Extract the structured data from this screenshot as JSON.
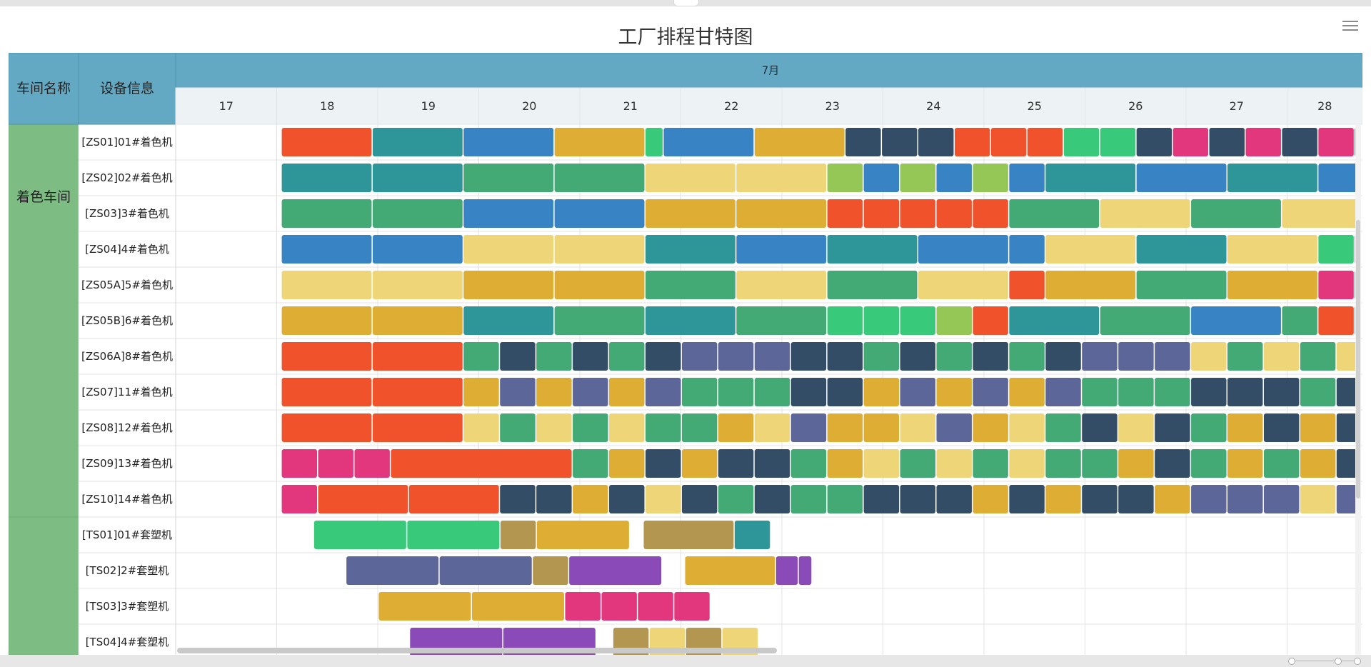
{
  "title": "工厂排程甘特图",
  "header": {
    "col_workshop": "车间名称",
    "col_equipment": "设备信息",
    "month": "7月"
  },
  "days": [
    "17",
    "18",
    "19",
    "20",
    "21",
    "22",
    "23",
    "24",
    "25",
    "26",
    "27",
    "28"
  ],
  "colors": {
    "header_bg": "#64a9c4",
    "header_border": "#4f93ad",
    "day_header_bg": "#edf3f5",
    "workshop_bg": "#7dbd84",
    "equipment_bg": "#ffffff",
    "grid_line": "#e3e3e3",
    "palette": {
      "red": "#f0532b",
      "teal": "#2e9598",
      "blue": "#3883c4",
      "mustard": "#dead33",
      "lightyellow": "#eed577",
      "mint": "#38ca7a",
      "navy": "#344d66",
      "pink": "#e2377d",
      "green": "#43a975",
      "lime": "#94c755",
      "olive": "#b3964f",
      "purple": "#8a4ab8",
      "slate": "#5d6698"
    }
  },
  "workshops": [
    {
      "name": "着色车间",
      "rows": 11
    },
    {
      "name": "",
      "rows": 4
    }
  ],
  "chart_data": {
    "type": "gantt",
    "title": "工厂排程甘特图",
    "x_axis": {
      "label": "7月",
      "ticks": [
        "17",
        "18",
        "19",
        "20",
        "21",
        "22",
        "23",
        "24",
        "25",
        "26",
        "27",
        "28"
      ],
      "range": [
        17,
        28.75
      ]
    },
    "y_axis": {
      "label": "设备信息"
    },
    "machines": [
      {
        "name": "[ZS01]01#着色机",
        "workshop": "着色车间",
        "start": 18.05,
        "seq": "red*2,teal*2,blue*2,mustard*2,mint*0.4,blue*2,mustard*2,navy*0.8,navy*0.8,navy*0.8,red*0.8,red*0.8,red*0.8,mint*0.8,mint*0.8,navy*0.8,pink*0.8,navy*0.8,pink*0.8,navy*0.8,pink*0.8,navy*0.8,pink*0.8,navy*0.8,pink*0.8,navy*0.8,pink*0.8,pink*0.8,pink*0.8,pink*0.8,navy*0.8,pink*0.8,navy*0.8,pink*0.8,navy*0.8,pink*0.8,red*0.8,lightyellow*0.8,lime*0.8,red*0.8,lightyellow*0.8,lime*0.8"
      },
      {
        "name": "[ZS02]02#着色机",
        "workshop": "着色车间",
        "start": 18.05,
        "seq": "teal*2,teal*2,green*2,green*2,lightyellow*2,lightyellow*2,lime*0.8,blue*0.8,lime*0.8,blue*0.8,lime*0.8,blue*0.8,teal*2,blue*2,teal*2,blue*2,green*0.8,green*0.8,green*0.8,navy*0.8,navy*0.8,pink*0.8,pink*0.8,pink*0.8,green*0.8,navy*0.8,green*0.8,navy*0.8,green*0.8,navy*0.8,pink*0.8,pink*0.8,pink*0.8,red*0.8,red*0.8,red*0.8,pink*0.8,pink*0.8,pink*0.8,purple*2,olive*2,purple*2,olive*2"
      },
      {
        "name": "[ZS03]3#着色机",
        "workshop": "着色车间",
        "start": 18.05,
        "seq": "green*2,green*2,blue*2,blue*2,mustard*2,mustard*2,red*0.8,red*0.8,red*0.8,red*0.8,red*0.8,green*2,lightyellow*2,green*2,lightyellow*2,navy*0.8,navy*0.8,navy*0.8,red*0.8,red*0.8,green*0.8,red*0.8,green*0.8,red*0.8,green*0.8,red*0.8,green*0.8,red*0.8,green*0.8,red*0.8,green*0.8,red*0.8,mint*0.8,mint*0.8,mint*0.8,green*0.8,red*0.8,green*0.8,red*0.8,green*0.8,red*0.8,green*2,green*2"
      },
      {
        "name": "[ZS04]4#着色机",
        "workshop": "着色车间",
        "start": 18.05,
        "seq": "blue*2,blue*2,lightyellow*2,lightyellow*2,teal*2,blue*2,teal*2,blue*2,blue*0.8,lightyellow*2,teal*2,lightyellow*2,mint*0.8,mint*0.8,mint*0.8,mint*0.8,mint*0.8,mint*0.8,green*0.8,red*0.8,green*0.8,red*0.8,green*0.8,red*0.8,mint*0.8,mint*0.8,mint*0.8,green*0.8,red*0.8,green*0.8,red*0.8,green*0.8,red*0.8,green*0.8,red*0.8,green*0.8,red*0.8,lightyellow*2,lightyellow*2,lime*0.8,lime*0.8"
      },
      {
        "name": "[ZS05A]5#着色机",
        "workshop": "着色车间",
        "start": 18.05,
        "seq": "lightyellow*2,lightyellow*2,mustard*2,mustard*2,green*2,lightyellow*2,green*2,lightyellow*2,red*0.8,mustard*2,green*2,mustard*2,pink*0.8,pink*0.8,pink*0.8,pink*0.8,pink*0.8,pink*0.8,navy*0.8,green*0.8,navy*0.8,green*0.8,navy*0.8,green*0.8,pink*0.8,pink*0.8,pink*0.8,navy*0.8,mint*0.8,navy*0.8,mint*0.8,navy*0.8,mint*0.8,navy*0.8,mint*0.8,navy*0.8,mint*0.8,lime*2,lime*2,lightyellow*0.8,lightyellow*0.8"
      },
      {
        "name": "[ZS05B]6#着色机",
        "workshop": "着色车间",
        "start": 18.05,
        "seq": "mustard*2,mustard*2,teal*2,green*2,teal*2,green*2,mint*0.8,mint*0.8,mint*0.8,lime*0.8,red*0.8,teal*2,green*2,blue*2,green*0.8,red*0.8,green*0.8,red*0.8,green*0.8,pink*0.8,green*0.8,pink*0.8,mint*0.8,mint*0.8,mint*0.8,red*0.8,red*0.8,red*0.8,mint*0.8,mint*0.8,mint*0.8,navy*0.8,green*0.8,navy*0.8,green*0.8,navy*0.8,mint*0.8,mint*0.8,mint*0.8,teal*2,teal*2,teal*0.8,teal*0.8"
      },
      {
        "name": "[ZS06A]8#着色机",
        "workshop": "着色车间",
        "start": 18.05,
        "seq": "red*2,red*2,green*0.8,navy*0.8,green*0.8,navy*0.8,green*0.8,navy*0.8,slate*0.8,slate*0.8,slate*0.8,navy*0.8,navy*0.8,green*0.8,navy*0.8,green*0.8,navy*0.8,green*0.8,navy*0.8,slate*0.8,slate*0.8,slate*0.8,lightyellow*0.8,green*0.8,lightyellow*0.8,green*0.8,lightyellow*0.8,green*0.8,green*0.8,lightyellow*0.8,navy*0.8,green*0.8,navy*0.8,green*0.8,green*0.8,lightyellow*0.8,navy*0.8,green*0.8,navy*0.8,lightyellow*0.8,navy*0.8,green*0.8,lightyellow*0.8,navy*0.8,green*0.8,navy*0.8,lightyellow*0.8,navy*0.8"
      },
      {
        "name": "[ZS07]11#着色机",
        "workshop": "着色车间",
        "start": 18.05,
        "seq": "red*2,red*2,mustard*0.8,slate*0.8,mustard*0.8,slate*0.8,mustard*0.8,slate*0.8,green*0.8,green*0.8,green*0.8,navy*0.8,navy*0.8,mustard*0.8,slate*0.8,mustard*0.8,slate*0.8,mustard*0.8,slate*0.8,green*0.8,green*0.8,green*0.8,navy*0.8,navy*0.8,navy*0.8,green*0.8,navy*0.8,green*0.8,green*0.8,green*0.8,navy*0.8,green*0.8,green*0.8,navy*0.8,lightyellow*0.8,navy*0.8,lightyellow*0.8,navy*0.8,lightyellow*0.8,navy*0.8,slate*0.8,slate*0.8,slate*0.8,green*0.8,green*0.8,green*0.8"
      },
      {
        "name": "[ZS08]12#着色机",
        "workshop": "着色车间",
        "start": 18.05,
        "seq": "red*2,red*2,lightyellow*0.8,green*0.8,lightyellow*0.8,green*0.8,lightyellow*0.8,green*0.8,green*0.8,mustard*0.8,lightyellow*0.8,slate*0.8,mustard*0.8,mustard*0.8,lightyellow*0.8,slate*0.8,mustard*0.8,lightyellow*0.8,green*0.8,navy*0.8,lightyellow*0.8,navy*0.8,green*0.8,mustard*0.8,navy*0.8,mustard*0.8,navy*0.8,mustard*0.8,navy*0.8,green*0.8,green*0.8,green*0.8,navy*0.8,green*0.8,navy*0.8,green*0.8,navy*0.8,green*0.8,lightyellow*0.8,navy*0.8,green*0.8,lightyellow*0.8,navy*0.8,green*0.8,lightyellow*0.8,navy*0.8,green*0.8"
      },
      {
        "name": "[ZS09]13#着色机",
        "workshop": "着色车间",
        "start": 18.05,
        "seq": "pink*0.8,pink*0.8,pink*0.8,red*4,green*0.8,mustard*0.8,navy*0.8,mustard*0.8,navy*0.8,navy*0.8,green*0.8,mustard*0.8,lightyellow*0.8,green*0.8,lightyellow*0.8,green*0.8,lightyellow*0.8,green*0.8,green*0.8,mustard*0.8,navy*0.8,green*0.8,mustard*0.8,green*0.8,mustard*0.8,navy*0.8,mustard*0.8,navy*0.8,green*0.8,navy*0.8,slate*0.8,mustard*0.8,mustard*0.8,navy*0.8,slate*0.8,mustard*0.8,navy*0.8,green*0.8,mustard*0.8,navy*0.8,green*0.8,mustard*0.8,green*0.8"
      },
      {
        "name": "[ZS10]14#着色机",
        "workshop": "着色车间",
        "start": 18.05,
        "seq": "pink*0.8,red*2,red*2,navy*0.8,navy*0.8,mustard*0.8,navy*0.8,lightyellow*0.8,navy*0.8,green*0.8,navy*0.8,green*0.8,green*0.8,navy*0.8,navy*0.8,navy*0.8,mustard*0.8,navy*0.8,mustard*0.8,navy*0.8,navy*0.8,mustard*0.8,slate*0.8,slate*0.8,slate*0.8,lightyellow*0.8,slate*0.8,lightyellow*0.8,slate*0.8,lightyellow*0.8,slate*0.8,mustard*0.8,green*0.8,mustard*0.8,navy*0.8,green*0.8,navy*0.8,mustard*0.8,green*0.8,mustard*0.8,navy*0.8,navy*0.8,navy*0.8,slate*0.8,mustard*0.8,mustard*0.8,navy*0.8,slate*0.8,mustard*0.8,navy*0.8,slate*0.8"
      },
      {
        "name": "[TS01]01#套塑机",
        "workshop": "",
        "start": 18.37,
        "seq": "mint*2.05,mint*2.05,olive*0.8,mustard*2.05,gap*0.3,olive*2.0,teal*0.8"
      },
      {
        "name": "[TS02]2#套塑机",
        "workshop": "",
        "start": 18.69,
        "seq": "slate*2.05,slate*2.05,olive*0.8,purple*2.05,gap*0.5,mustard*2.0,purple*0.5,purple*0.3"
      },
      {
        "name": "[TS03]3#套塑机",
        "workshop": "",
        "start": 19.01,
        "seq": "mustard*2.05,mustard*2.05,pink*0.8,pink*0.8,pink*0.8,pink*0.8"
      },
      {
        "name": "[TS04]4#套塑机",
        "workshop": "",
        "start": 19.32,
        "seq": "purple*2.05,purple*2.05,gap*0.37,olive*0.8,lightyellow*0.8,olive*0.8,lightyellow*0.8"
      }
    ]
  }
}
